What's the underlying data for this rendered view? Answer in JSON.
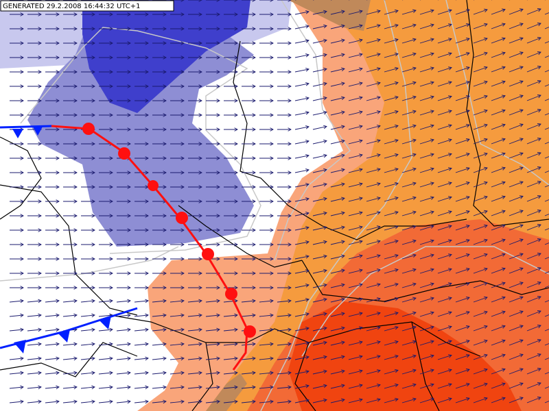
{
  "header": {
    "generated": "GENERATED 29.2.2008 16:44:32 UTC+1"
  }
}
